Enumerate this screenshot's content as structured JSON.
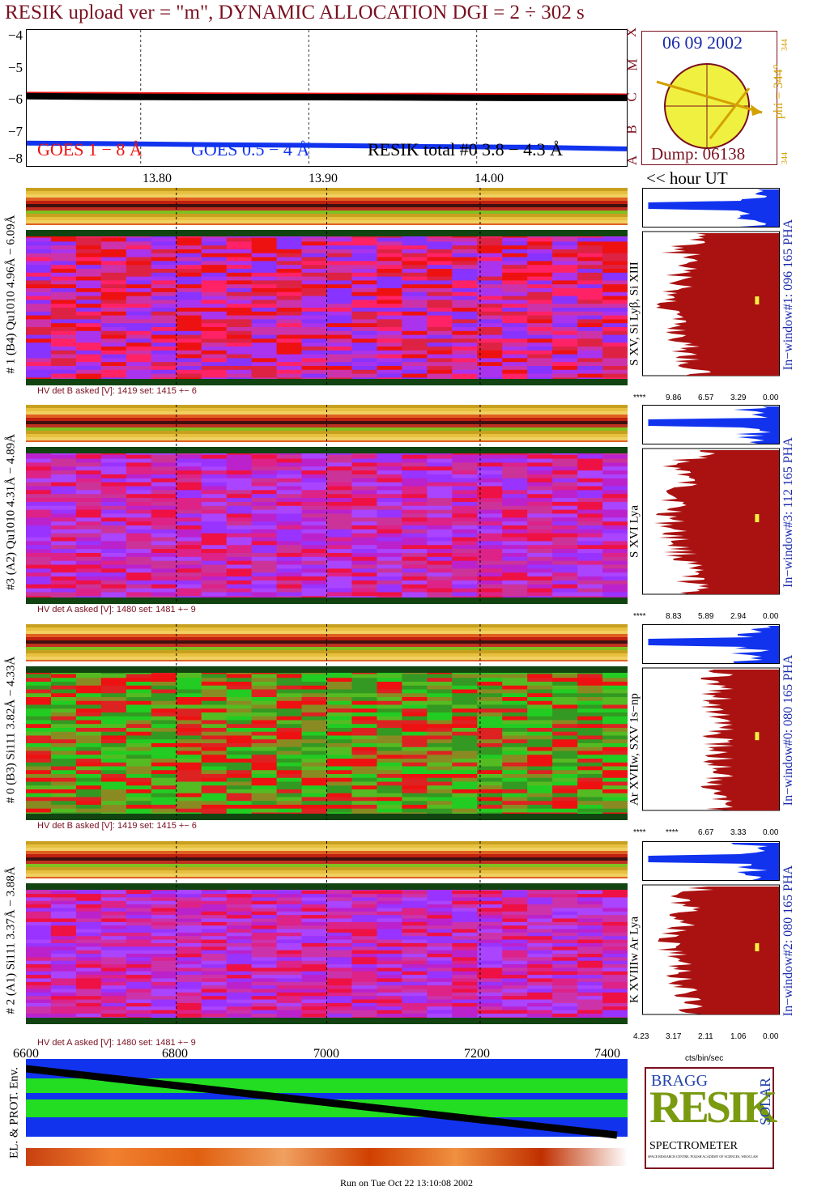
{
  "title": "RESIK upload ver = \"m\", DYNAMIC ALLOCATION  DGI =   2 ÷ 302 s",
  "goes": {
    "y_ticks": [
      "−4",
      "−5",
      "−6",
      "−7",
      "−8"
    ],
    "class_labels": [
      "X",
      "M",
      "C",
      "B",
      "A"
    ],
    "legend_goes18": "GOES 1 − 8 Å",
    "legend_goes054": "GOES 0.5 − 4 Å",
    "legend_resik": "RESIK total #0  3.8 − 4.3 Å",
    "colors": {
      "goes18": "#ee1111",
      "goes054": "#1133ee",
      "resik": "#000000"
    }
  },
  "sun": {
    "date": "06 09 2002",
    "phi": "phi = 344°",
    "phi_small": "344",
    "phi_small2": "344",
    "dump": "Dump: 06138"
  },
  "wave_ticks": [
    "13.80",
    "13.90",
    "14.00"
  ],
  "hour_label": "<< hour UT",
  "channels": [
    {
      "id": "ch1",
      "side_label": "# 1 (B4) Qu1010 4.96Å − 6.09Å",
      "line_label": "S XV, Si Lyβ, Si XIII",
      "inwindow": "In−window#1:  096 165 PHA",
      "hv": "HV det B asked [V]:  1419 set:  1415 +−    6",
      "hist_ticks": [
        "****",
        "9.86",
        "6.57",
        "3.29",
        "0.00"
      ]
    },
    {
      "id": "ch3",
      "side_label": "#3 (A2) Qu1010  4.31Å − 4.89Å",
      "line_label": "S XVI Lya",
      "inwindow": "In−window#3:  112 165 PHA",
      "hv": "HV det A asked [V]:  1480 set:  1481 +−    9",
      "hist_ticks": [
        "****",
        "8.83",
        "5.89",
        "2.94",
        "0.00"
      ]
    },
    {
      "id": "ch0",
      "side_label": "# 0 (B3) Si111  3.82Å − 4.33Å",
      "line_label": "Ar XVIIw, SXV 1s−np",
      "inwindow": "In−window#0:  080 165 PHA",
      "hv": "HV det B asked [V]:  1419 set:  1415 +−    6",
      "hist_ticks": [
        "****",
        "****",
        "6.67",
        "3.33",
        "0.00"
      ]
    },
    {
      "id": "ch2",
      "side_label": "# 2 (A1) Si111  3.37Å − 3.88Å",
      "line_label": "K XVIIIw  Ar Lya",
      "inwindow": "In−window#2:  080 165 PHA",
      "hv": "HV det A asked [V]:  1480 set:  1481 +−    9",
      "hist_ticks": [
        "4.23",
        "3.17",
        "2.11",
        "1.06",
        "0.00"
      ]
    }
  ],
  "hist_unit": "cts/bin/sec",
  "x_ticks": [
    "6600",
    "6800",
    "7000",
    "7200",
    "7400"
  ],
  "env_label": "EL. & PROT. Env.",
  "logo": {
    "line1": "BRAGG",
    "line2": "RESIK",
    "line3": "SOLAR",
    "line4": "SPECTROMETER",
    "credits": "SPACE RESEARCH CENTRE, POLISH ACADEMY OF SCIENCES, WROCLAW"
  },
  "footer": "Run on Tue Oct 22 13:10:08 2002",
  "chart_data": {
    "type": "line",
    "title": "RESIK upload ver = \"m\", DYNAMIC ALLOCATION  DGI =   2 ÷ 302 s",
    "x_range": [
      6600,
      7400
    ],
    "y_range": [
      -8,
      -4
    ],
    "series": [
      {
        "name": "GOES 1 − 8 Å",
        "values": [
          -5.83,
          -5.84,
          -5.85,
          -5.86,
          -5.86,
          -5.87,
          -5.88
        ]
      },
      {
        "name": "GOES 0.5 − 4 Å",
        "values": [
          -7.28,
          -7.3,
          -7.33,
          -7.35,
          -7.38,
          -7.4,
          -7.45
        ]
      },
      {
        "name": "RESIK total #0  3.8 − 4.3 Å",
        "values": [
          -5.9,
          -5.92,
          -5.93,
          -5.93,
          -5.94,
          -5.95,
          -5.95
        ]
      }
    ],
    "x_tick_labels": [
      "6600",
      "6800",
      "7000",
      "7200",
      "7400"
    ],
    "wavelength_ticks": [
      "13.80",
      "13.90",
      "14.00"
    ]
  }
}
